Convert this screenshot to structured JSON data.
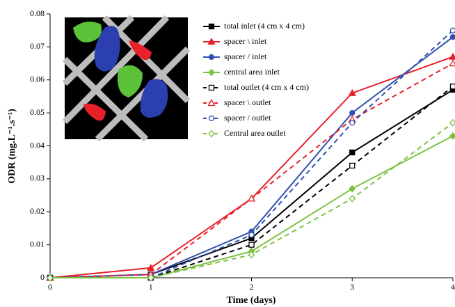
{
  "chart_data": {
    "type": "line",
    "x_label": "Time (days)",
    "y_label": "ODR (mg.L⁻¹.s⁻¹)",
    "x": [
      0,
      1,
      2,
      3,
      4
    ],
    "xlim": [
      0,
      4
    ],
    "xticks": [
      0,
      1,
      2,
      3,
      4
    ],
    "ylim": [
      0,
      0.08
    ],
    "yticks": [
      0,
      0.01,
      0.02,
      0.03,
      0.04,
      0.05,
      0.06,
      0.07,
      0.08
    ],
    "grid": false,
    "legend": "top-right",
    "series": [
      {
        "name": "total inlet (4 cm x 4 cm)",
        "color": "#000000",
        "marker": "square",
        "filled": true,
        "dashed": false,
        "values": [
          0,
          0.001,
          0.012,
          0.038,
          0.057
        ]
      },
      {
        "name": "spacer \\ inlet",
        "color": "#e8202a",
        "marker": "triangle",
        "filled": true,
        "dashed": false,
        "values": [
          0,
          0.003,
          0.024,
          0.056,
          0.067
        ]
      },
      {
        "name": "spacer / inlet",
        "color": "#3050b0",
        "marker": "circle",
        "filled": true,
        "dashed": false,
        "values": [
          0,
          0.001,
          0.014,
          0.05,
          0.073
        ]
      },
      {
        "name": "central area inlet",
        "color": "#7cc242",
        "marker": "diamond",
        "filled": true,
        "dashed": false,
        "values": [
          0,
          0,
          0.008,
          0.027,
          0.043
        ]
      },
      {
        "name": "total outlet (4 cm x 4 cm)",
        "color": "#000000",
        "marker": "square",
        "filled": false,
        "dashed": true,
        "values": [
          0,
          0,
          0.01,
          0.034,
          0.058
        ]
      },
      {
        "name": "spacer \\ outlet",
        "color": "#e8202a",
        "marker": "triangle",
        "filled": false,
        "dashed": true,
        "values": [
          0,
          0.001,
          0.024,
          0.048,
          0.065
        ]
      },
      {
        "name": "spacer / outlet",
        "color": "#3050b0",
        "marker": "circle",
        "filled": false,
        "dashed": true,
        "values": [
          0,
          0,
          0.013,
          0.047,
          0.075
        ]
      },
      {
        "name": "Central area outlet",
        "color": "#7cc242",
        "marker": "diamond",
        "filled": false,
        "dashed": true,
        "values": [
          0,
          0,
          0.007,
          0.024,
          0.047
        ]
      }
    ]
  }
}
